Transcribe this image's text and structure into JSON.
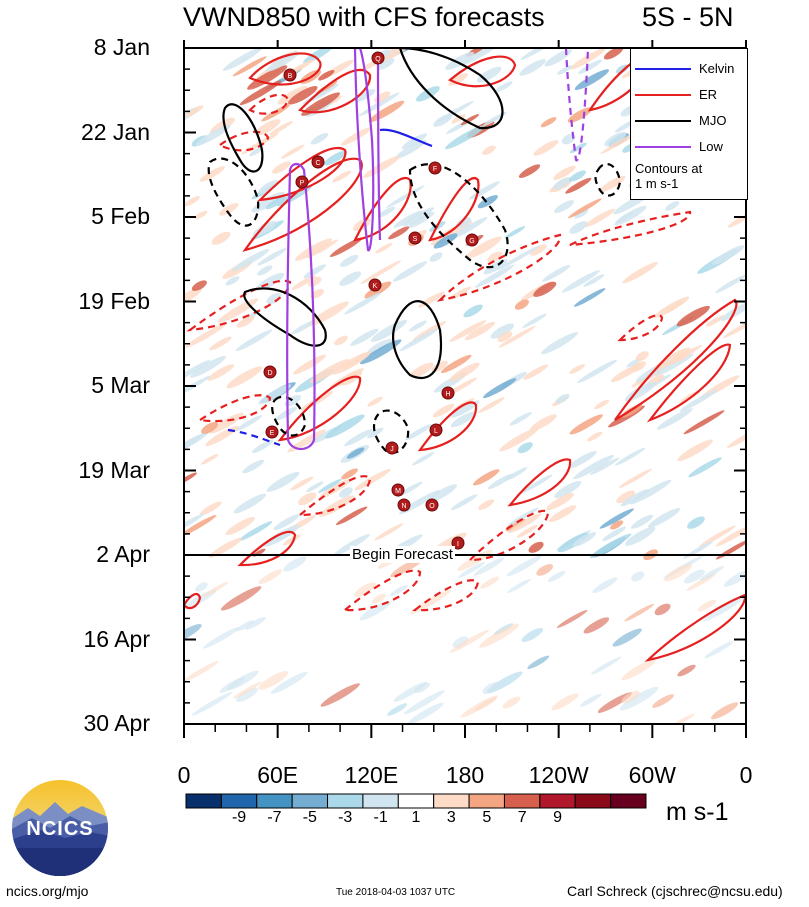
{
  "header": {
    "title": "VWND850 with CFS forecasts",
    "region": "5S - 5N"
  },
  "legend": {
    "items": [
      {
        "label": "Kelvin",
        "color": "#1f1fe6"
      },
      {
        "label": "ER",
        "color": "#e6201f"
      },
      {
        "label": "MJO",
        "color": "#000000"
      },
      {
        "label": "Low",
        "color": "#a040e0"
      }
    ],
    "note_line1": "Contours at",
    "note_line2": "1 m s-1"
  },
  "annotation": "Begin Forecast",
  "colorbar": {
    "labels": [
      "-9",
      "-7",
      "-5",
      "-3",
      "-1",
      "1",
      "3",
      "5",
      "7",
      "9"
    ],
    "units": "m s-1",
    "colors": [
      "#08306b",
      "#2166ac",
      "#4393c3",
      "#74add1",
      "#abd9e9",
      "#d1e5f0",
      "#ffffff",
      "#fddbc7",
      "#f4a582",
      "#d6604d",
      "#b2182b",
      "#8b0a1a",
      "#67001f"
    ]
  },
  "logo": {
    "text": "NCICS"
  },
  "footer": {
    "site": "ncics.org/mjo",
    "timestamp": "Tue 2018-04-03 1037 UTC",
    "author": "Carl Schreck (cjschrec@ncsu.edu)"
  },
  "chart_data": {
    "type": "heatmap",
    "title": "VWND850 with CFS forecasts",
    "subtitle": "5S - 5N",
    "x_ticks": [
      "0",
      "60E",
      "120E",
      "180",
      "120W",
      "60W",
      "0"
    ],
    "x_range_deg": [
      0,
      360
    ],
    "y_ticks": [
      "8 Jan",
      "22 Jan",
      "5 Feb",
      "19 Feb",
      "5 Mar",
      "19 Mar",
      "2 Apr",
      "16 Apr",
      "30 Apr"
    ],
    "y_range": [
      "8 Jan",
      "30 Apr"
    ],
    "forecast_start": "2 Apr",
    "contour_interval": "1 m s-1",
    "color_levels": [
      -9,
      -7,
      -5,
      -3,
      -1,
      1,
      3,
      5,
      7,
      9
    ],
    "contour_series": [
      {
        "name": "Kelvin",
        "color": "#1f1fe6"
      },
      {
        "name": "ER",
        "color": "#e6201f"
      },
      {
        "name": "MJO",
        "color": "#000000"
      },
      {
        "name": "Low",
        "color": "#a040e0"
      }
    ],
    "tropical_cyclone_markers": [
      "B",
      "Q",
      "C",
      "F",
      "S",
      "G",
      "K",
      "D",
      "H",
      "E",
      "L",
      "J",
      "M",
      "N",
      "O",
      "I",
      "P"
    ]
  }
}
